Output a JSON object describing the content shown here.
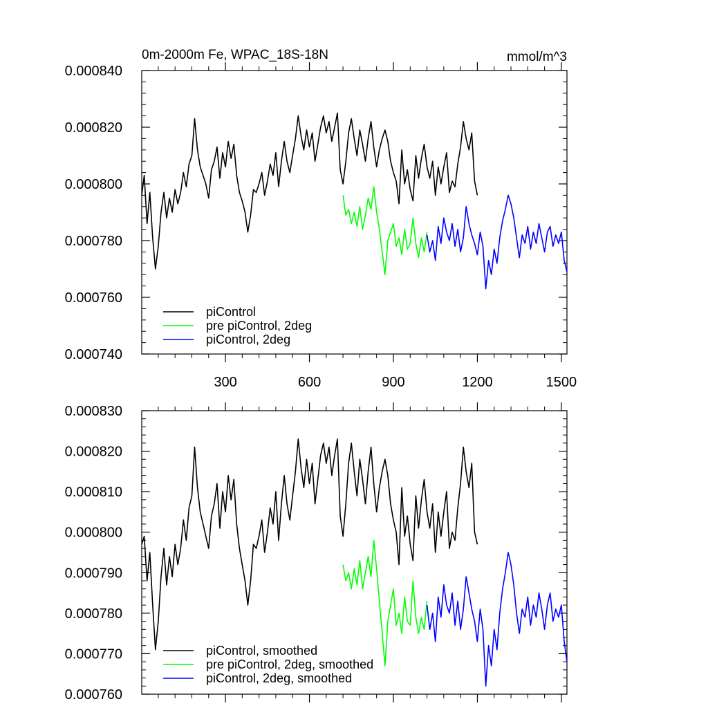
{
  "chart_data": [
    {
      "type": "line",
      "title": "0m-2000m Fe, WPAC_18S-18N",
      "units": "mmol/m^3",
      "xlim": [
        1,
        1520
      ],
      "xticks": [
        300,
        600,
        900,
        1200,
        1500
      ],
      "ylim": [
        0.00074,
        0.00084
      ],
      "yticks": [
        "0.000740",
        "0.000760",
        "0.000780",
        "0.000800",
        "0.000820",
        "0.000840"
      ],
      "grid": false,
      "legend_position": "bottom-left",
      "series": [
        {
          "name": "piControl",
          "color": "#000000",
          "x": [
            1,
            10,
            20,
            30,
            40,
            50,
            60,
            70,
            80,
            90,
            100,
            110,
            120,
            130,
            140,
            150,
            160,
            170,
            180,
            190,
            200,
            210,
            220,
            230,
            240,
            250,
            260,
            270,
            280,
            290,
            300,
            310,
            320,
            330,
            340,
            350,
            360,
            370,
            380,
            390,
            400,
            410,
            420,
            430,
            440,
            450,
            460,
            470,
            480,
            490,
            500,
            510,
            520,
            530,
            540,
            550,
            560,
            570,
            580,
            590,
            600,
            610,
            620,
            630,
            640,
            650,
            660,
            670,
            680,
            690,
            700,
            710,
            720,
            730,
            740,
            750,
            760,
            770,
            780,
            790,
            800,
            810,
            820,
            830,
            840,
            850,
            860,
            870,
            880,
            890,
            900,
            910,
            920,
            930,
            940,
            950,
            960,
            970,
            980,
            990,
            1000,
            1010,
            1020,
            1030,
            1040,
            1050,
            1060,
            1070,
            1080,
            1090,
            1100,
            1110,
            1120,
            1130,
            1140,
            1150,
            1160,
            1170,
            1180,
            1190,
            1200
          ],
          "values": [
            0.000796,
            0.000803,
            0.000786,
            0.000797,
            0.000781,
            0.00077,
            0.000778,
            0.00079,
            0.000797,
            0.000788,
            0.000795,
            0.00079,
            0.000798,
            0.000793,
            0.000797,
            0.000804,
            0.000799,
            0.000807,
            0.00081,
            0.000823,
            0.000812,
            0.000806,
            0.000803,
            0.0008,
            0.000795,
            0.000805,
            0.000808,
            0.000813,
            0.000802,
            0.000811,
            0.000806,
            0.000815,
            0.000809,
            0.000814,
            0.000803,
            0.000797,
            0.000794,
            0.00079,
            0.000783,
            0.000789,
            0.000798,
            0.000797,
            0.0008,
            0.000804,
            0.000796,
            0.000801,
            0.000807,
            0.000803,
            0.000811,
            0.000799,
            0.000808,
            0.000815,
            0.000808,
            0.000804,
            0.00081,
            0.000816,
            0.000824,
            0.000817,
            0.000812,
            0.000819,
            0.000813,
            0.000818,
            0.000808,
            0.000814,
            0.00082,
            0.000824,
            0.000818,
            0.000822,
            0.000815,
            0.00082,
            0.000825,
            0.000805,
            0.0008,
            0.000808,
            0.000818,
            0.000823,
            0.000816,
            0.00081,
            0.000819,
            0.000814,
            0.000808,
            0.000816,
            0.000822,
            0.000813,
            0.000806,
            0.000812,
            0.000816,
            0.000819,
            0.000815,
            0.000808,
            0.000804,
            0.000801,
            0.000793,
            0.000812,
            0.0008,
            0.000805,
            0.000798,
            0.000794,
            0.00081,
            0.000802,
            0.000809,
            0.000814,
            0.000806,
            0.000802,
            0.000808,
            0.000796,
            0.000806,
            0.0008,
            0.000806,
            0.000811,
            0.000797,
            0.000801,
            0.000799,
            0.000807,
            0.000813,
            0.000822,
            0.000816,
            0.000812,
            0.000818,
            0.000801,
            0.000796
          ]
        },
        {
          "name": "pre piControl, 2deg",
          "color": "#00ff00",
          "x": [
            720,
            730,
            740,
            750,
            760,
            770,
            780,
            790,
            800,
            810,
            820,
            830,
            840,
            850,
            860,
            870,
            880,
            890,
            900,
            910,
            920,
            930,
            940,
            950,
            960,
            970,
            980,
            990,
            1000,
            1010,
            1020
          ],
          "values": [
            0.000796,
            0.000789,
            0.000791,
            0.000786,
            0.00079,
            0.000785,
            0.000792,
            0.000784,
            0.000789,
            0.000795,
            0.000791,
            0.000799,
            0.00079,
            0.000784,
            0.000776,
            0.000768,
            0.00078,
            0.000783,
            0.000786,
            0.000778,
            0.000781,
            0.000775,
            0.000784,
            0.000777,
            0.000779,
            0.000788,
            0.000779,
            0.000774,
            0.000781,
            0.000776,
            0.000783
          ]
        },
        {
          "name": "piControl, 2deg",
          "color": "#0000ff",
          "x": [
            1020,
            1030,
            1040,
            1050,
            1060,
            1070,
            1080,
            1090,
            1100,
            1110,
            1120,
            1130,
            1140,
            1150,
            1160,
            1170,
            1180,
            1190,
            1200,
            1210,
            1220,
            1230,
            1240,
            1250,
            1260,
            1270,
            1280,
            1290,
            1300,
            1310,
            1320,
            1330,
            1340,
            1350,
            1360,
            1370,
            1380,
            1390,
            1400,
            1410,
            1420,
            1430,
            1440,
            1450,
            1460,
            1470,
            1480,
            1490,
            1500,
            1510,
            1520
          ],
          "values": [
            0.000782,
            0.000776,
            0.00078,
            0.000773,
            0.000785,
            0.000779,
            0.000788,
            0.000783,
            0.00078,
            0.000786,
            0.000778,
            0.000784,
            0.000776,
            0.000781,
            0.000792,
            0.000786,
            0.000782,
            0.000779,
            0.000775,
            0.000783,
            0.000778,
            0.000763,
            0.000773,
            0.000768,
            0.000777,
            0.000772,
            0.000781,
            0.000787,
            0.000791,
            0.000796,
            0.000793,
            0.000788,
            0.000781,
            0.000774,
            0.000782,
            0.000779,
            0.000785,
            0.000777,
            0.000783,
            0.000779,
            0.000786,
            0.000781,
            0.000776,
            0.000783,
            0.000785,
            0.000778,
            0.000782,
            0.000779,
            0.000783,
            0.000773,
            0.000769
          ]
        }
      ]
    },
    {
      "type": "line",
      "xlim": [
        1,
        1520
      ],
      "xticks": [
        300,
        600,
        900,
        1200,
        1500
      ],
      "ylim": [
        0.00076,
        0.00083
      ],
      "yticks": [
        "0.000760",
        "0.000770",
        "0.000780",
        "0.000790",
        "0.000800",
        "0.000810",
        "0.000820",
        "0.000830"
      ],
      "grid": false,
      "legend_position": "bottom-left",
      "series": [
        {
          "name": "piControl, smoothed",
          "color": "#000000",
          "x": [
            1,
            10,
            20,
            30,
            40,
            50,
            60,
            70,
            80,
            90,
            100,
            110,
            120,
            130,
            140,
            150,
            160,
            170,
            180,
            190,
            200,
            210,
            220,
            230,
            240,
            250,
            260,
            270,
            280,
            290,
            300,
            310,
            320,
            330,
            340,
            350,
            360,
            370,
            380,
            390,
            400,
            410,
            420,
            430,
            440,
            450,
            460,
            470,
            480,
            490,
            500,
            510,
            520,
            530,
            540,
            550,
            560,
            570,
            580,
            590,
            600,
            610,
            620,
            630,
            640,
            650,
            660,
            670,
            680,
            690,
            700,
            710,
            720,
            730,
            740,
            750,
            760,
            770,
            780,
            790,
            800,
            810,
            820,
            830,
            840,
            850,
            860,
            870,
            880,
            890,
            900,
            910,
            920,
            930,
            940,
            950,
            960,
            970,
            980,
            990,
            1000,
            1010,
            1020,
            1030,
            1040,
            1050,
            1060,
            1070,
            1080,
            1090,
            1100,
            1110,
            1120,
            1130,
            1140,
            1150,
            1160,
            1170,
            1180,
            1190,
            1200
          ],
          "values": [
            0.000797,
            0.000799,
            0.000788,
            0.000795,
            0.000782,
            0.000771,
            0.000778,
            0.000789,
            0.000796,
            0.000787,
            0.000794,
            0.000789,
            0.000797,
            0.000792,
            0.000796,
            0.000803,
            0.000798,
            0.000806,
            0.000809,
            0.000821,
            0.000811,
            0.000805,
            0.000802,
            0.000799,
            0.000796,
            0.000804,
            0.000807,
            0.000812,
            0.000801,
            0.00081,
            0.000805,
            0.000814,
            0.000808,
            0.000813,
            0.000802,
            0.000796,
            0.000792,
            0.000788,
            0.000782,
            0.000788,
            0.000797,
            0.000796,
            0.000799,
            0.000803,
            0.000795,
            0.0008,
            0.000806,
            0.000802,
            0.00081,
            0.000798,
            0.000807,
            0.000814,
            0.000807,
            0.000803,
            0.000809,
            0.000815,
            0.000823,
            0.000816,
            0.000811,
            0.000818,
            0.000812,
            0.000817,
            0.000807,
            0.000813,
            0.000819,
            0.000822,
            0.000817,
            0.000821,
            0.000814,
            0.000819,
            0.000823,
            0.000804,
            0.000799,
            0.000807,
            0.000817,
            0.000822,
            0.000815,
            0.000809,
            0.000818,
            0.000813,
            0.000807,
            0.000815,
            0.000821,
            0.000812,
            0.000805,
            0.000811,
            0.000815,
            0.000818,
            0.000814,
            0.000807,
            0.000803,
            0.0008,
            0.000792,
            0.000811,
            0.000799,
            0.000804,
            0.000797,
            0.000793,
            0.000809,
            0.000801,
            0.000808,
            0.000813,
            0.000805,
            0.000801,
            0.000807,
            0.000795,
            0.000805,
            0.000799,
            0.000805,
            0.00081,
            0.000796,
            0.0008,
            0.000798,
            0.000806,
            0.000812,
            0.000821,
            0.000815,
            0.000811,
            0.000817,
            0.0008,
            0.000797
          ]
        },
        {
          "name": "pre piControl, 2deg, smoothed",
          "color": "#00ff00",
          "x": [
            720,
            730,
            740,
            750,
            760,
            770,
            780,
            790,
            800,
            810,
            820,
            830,
            840,
            850,
            860,
            870,
            880,
            890,
            900,
            910,
            920,
            930,
            940,
            950,
            960,
            970,
            980,
            990,
            1000,
            1010,
            1020
          ],
          "values": [
            0.000792,
            0.000788,
            0.00079,
            0.000786,
            0.000791,
            0.000787,
            0.000793,
            0.000786,
            0.00079,
            0.000794,
            0.000789,
            0.000798,
            0.000791,
            0.000783,
            0.000775,
            0.000767,
            0.000778,
            0.000782,
            0.000786,
            0.000777,
            0.00078,
            0.000775,
            0.000784,
            0.000778,
            0.000777,
            0.000788,
            0.000779,
            0.000775,
            0.000779,
            0.000776,
            0.000783
          ]
        },
        {
          "name": "piControl, 2deg, smoothed",
          "color": "#0000ff",
          "x": [
            1020,
            1030,
            1040,
            1050,
            1060,
            1070,
            1080,
            1090,
            1100,
            1110,
            1120,
            1130,
            1140,
            1150,
            1160,
            1170,
            1180,
            1190,
            1200,
            1210,
            1220,
            1230,
            1240,
            1250,
            1260,
            1270,
            1280,
            1290,
            1300,
            1310,
            1320,
            1330,
            1340,
            1350,
            1360,
            1370,
            1380,
            1390,
            1400,
            1410,
            1420,
            1430,
            1440,
            1450,
            1460,
            1470,
            1480,
            1490,
            1500,
            1510,
            1520
          ],
          "values": [
            0.000782,
            0.000776,
            0.00078,
            0.000773,
            0.000784,
            0.000779,
            0.000787,
            0.000782,
            0.00078,
            0.000785,
            0.000777,
            0.000783,
            0.000776,
            0.000781,
            0.000789,
            0.000785,
            0.000781,
            0.000778,
            0.000773,
            0.000781,
            0.000776,
            0.000762,
            0.000772,
            0.000767,
            0.000776,
            0.000771,
            0.00078,
            0.000786,
            0.00079,
            0.000795,
            0.000792,
            0.000787,
            0.00078,
            0.000775,
            0.000781,
            0.000779,
            0.000784,
            0.000777,
            0.000782,
            0.000779,
            0.000785,
            0.000781,
            0.000776,
            0.000782,
            0.000785,
            0.000778,
            0.000781,
            0.000779,
            0.000782,
            0.000773,
            0.000768
          ]
        }
      ]
    }
  ]
}
